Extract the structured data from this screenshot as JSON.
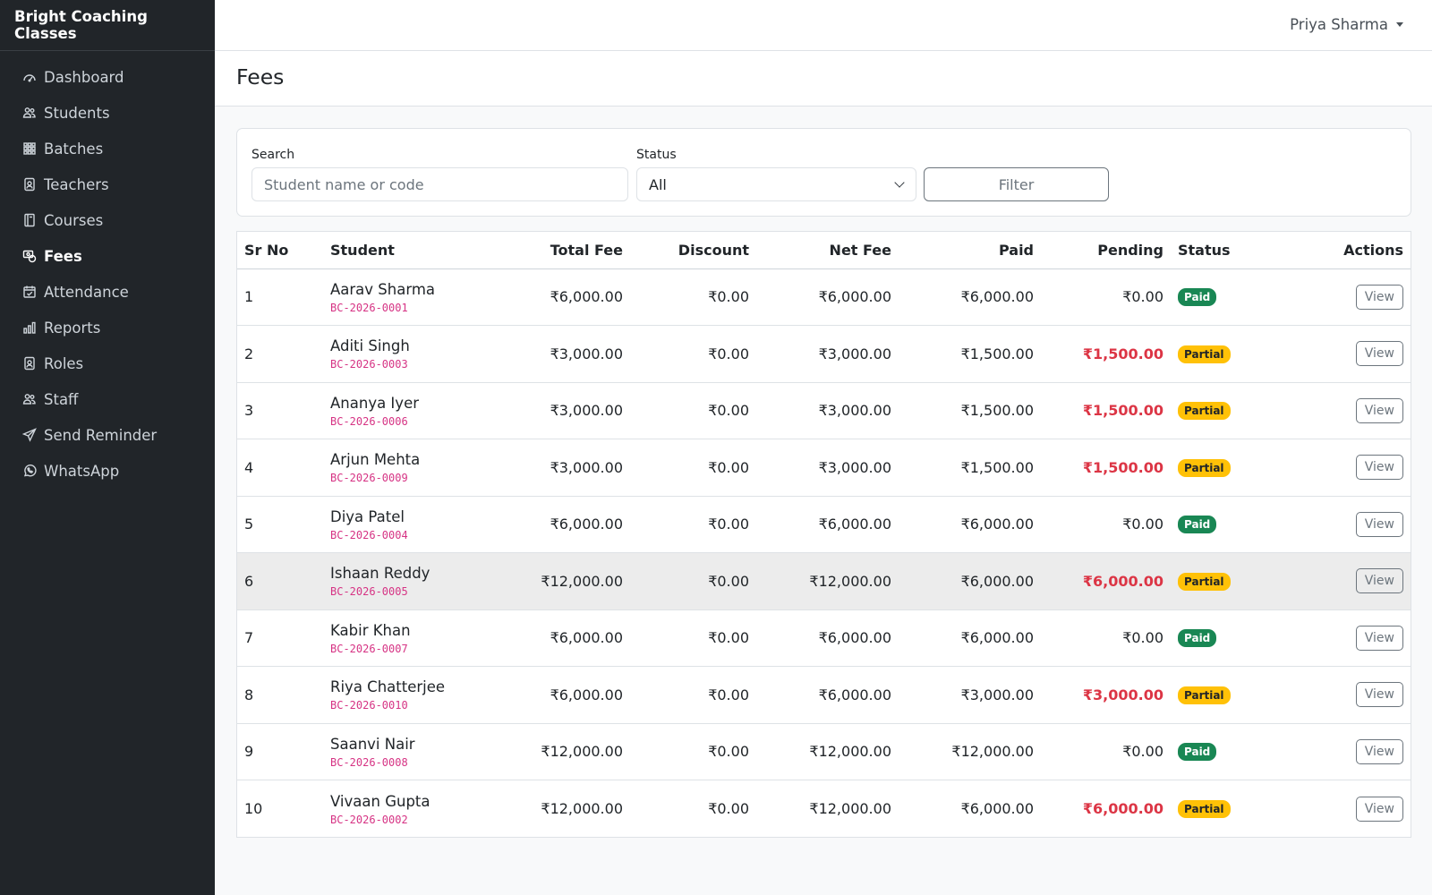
{
  "app": {
    "brand": "Bright Coaching Classes"
  },
  "user": {
    "name": "Priya Sharma"
  },
  "sidebar": {
    "items": [
      {
        "label": "Dashboard",
        "icon": "speedometer-icon"
      },
      {
        "label": "Students",
        "icon": "people-icon"
      },
      {
        "label": "Batches",
        "icon": "grid-icon"
      },
      {
        "label": "Teachers",
        "icon": "person-badge-icon"
      },
      {
        "label": "Courses",
        "icon": "book-icon"
      },
      {
        "label": "Fees",
        "icon": "cash-coin-icon",
        "active": true
      },
      {
        "label": "Attendance",
        "icon": "calendar-check-icon"
      },
      {
        "label": "Reports",
        "icon": "bar-chart-icon"
      },
      {
        "label": "Roles",
        "icon": "person-badge-icon"
      },
      {
        "label": "Staff",
        "icon": "people-icon"
      },
      {
        "label": "Send Reminder",
        "icon": "send-icon"
      },
      {
        "label": "WhatsApp",
        "icon": "whatsapp-icon"
      }
    ]
  },
  "page": {
    "title": "Fees"
  },
  "filters": {
    "search_label": "Search",
    "search_placeholder": "Student name or code",
    "status_label": "Status",
    "status_value": "All",
    "filter_button": "Filter"
  },
  "table": {
    "headers": {
      "sr": "Sr No",
      "student": "Student",
      "total": "Total Fee",
      "discount": "Discount",
      "net": "Net Fee",
      "paid": "Paid",
      "pending": "Pending",
      "status": "Status",
      "actions": "Actions"
    },
    "view_label": "View",
    "rows": [
      {
        "sr": "1",
        "name": "Aarav Sharma",
        "code": "BC-2026-0001",
        "total": "₹6,000.00",
        "discount": "₹0.00",
        "net": "₹6,000.00",
        "paid": "₹6,000.00",
        "pending": "₹0.00",
        "status": "Paid"
      },
      {
        "sr": "2",
        "name": "Aditi Singh",
        "code": "BC-2026-0003",
        "total": "₹3,000.00",
        "discount": "₹0.00",
        "net": "₹3,000.00",
        "paid": "₹1,500.00",
        "pending": "₹1,500.00",
        "status": "Partial"
      },
      {
        "sr": "3",
        "name": "Ananya Iyer",
        "code": "BC-2026-0006",
        "total": "₹3,000.00",
        "discount": "₹0.00",
        "net": "₹3,000.00",
        "paid": "₹1,500.00",
        "pending": "₹1,500.00",
        "status": "Partial"
      },
      {
        "sr": "4",
        "name": "Arjun Mehta",
        "code": "BC-2026-0009",
        "total": "₹3,000.00",
        "discount": "₹0.00",
        "net": "₹3,000.00",
        "paid": "₹1,500.00",
        "pending": "₹1,500.00",
        "status": "Partial"
      },
      {
        "sr": "5",
        "name": "Diya Patel",
        "code": "BC-2026-0004",
        "total": "₹6,000.00",
        "discount": "₹0.00",
        "net": "₹6,000.00",
        "paid": "₹6,000.00",
        "pending": "₹0.00",
        "status": "Paid"
      },
      {
        "sr": "6",
        "name": "Ishaan Reddy",
        "code": "BC-2026-0005",
        "total": "₹12,000.00",
        "discount": "₹0.00",
        "net": "₹12,000.00",
        "paid": "₹6,000.00",
        "pending": "₹6,000.00",
        "status": "Partial",
        "hover": true
      },
      {
        "sr": "7",
        "name": "Kabir Khan",
        "code": "BC-2026-0007",
        "total": "₹6,000.00",
        "discount": "₹0.00",
        "net": "₹6,000.00",
        "paid": "₹6,000.00",
        "pending": "₹0.00",
        "status": "Paid"
      },
      {
        "sr": "8",
        "name": "Riya Chatterjee",
        "code": "BC-2026-0010",
        "total": "₹6,000.00",
        "discount": "₹0.00",
        "net": "₹6,000.00",
        "paid": "₹3,000.00",
        "pending": "₹3,000.00",
        "status": "Partial"
      },
      {
        "sr": "9",
        "name": "Saanvi Nair",
        "code": "BC-2026-0008",
        "total": "₹12,000.00",
        "discount": "₹0.00",
        "net": "₹12,000.00",
        "paid": "₹12,000.00",
        "pending": "₹0.00",
        "status": "Paid"
      },
      {
        "sr": "10",
        "name": "Vivaan Gupta",
        "code": "BC-2026-0002",
        "total": "₹12,000.00",
        "discount": "₹0.00",
        "net": "₹12,000.00",
        "paid": "₹6,000.00",
        "pending": "₹6,000.00",
        "status": "Partial"
      }
    ]
  },
  "colors": {
    "sidebar_bg": "#212529",
    "paid_badge": "#198754",
    "partial_badge": "#ffc107",
    "pending_red": "#dc3545",
    "code_pink": "#d63384"
  }
}
